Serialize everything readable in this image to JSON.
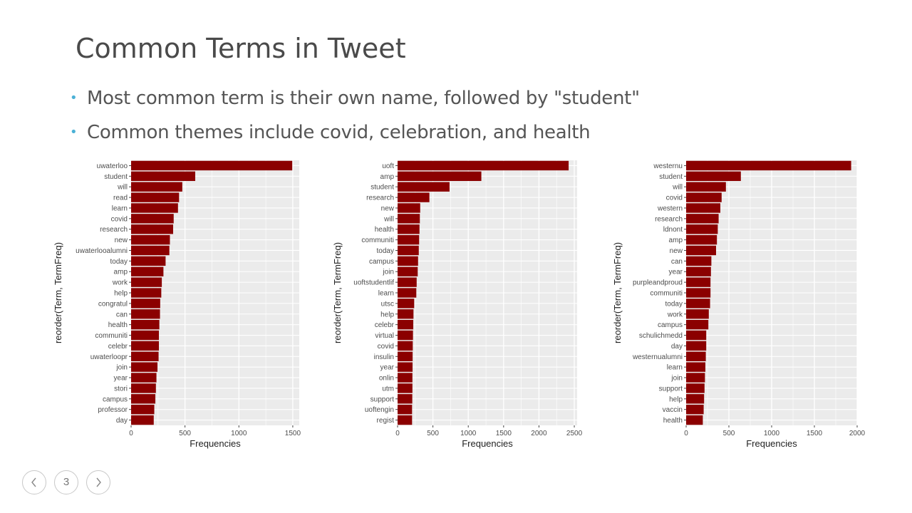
{
  "slide": {
    "title": "Common Terms in Tweet",
    "bullets": [
      "Most common term is their own name, followed by \"student\"",
      "Common themes include covid, celebration, and health"
    ],
    "page_number": "3",
    "prev_icon": "chevron-left-icon",
    "next_icon": "chevron-right-icon"
  },
  "colors": {
    "bar": "#8b0000",
    "panel": "#ebebeb",
    "grid": "#ffffff",
    "bullet": "#4bb1d6"
  },
  "chart_data": [
    {
      "type": "bar",
      "orientation": "horizontal",
      "xlabel": "Frequencies",
      "ylabel": "reorder(Term, TermFreq)",
      "xlim": [
        0,
        1560
      ],
      "xticks": [
        0,
        500,
        1000,
        1500
      ],
      "categories": [
        "uwaterloo",
        "student",
        "will",
        "read",
        "learn",
        "covid",
        "research",
        "new",
        "uwaterlooalumni",
        "today",
        "amp",
        "work",
        "help",
        "congratul",
        "can",
        "health",
        "communiti",
        "celebr",
        "uwaterloopr",
        "join",
        "year",
        "stori",
        "campus",
        "professor",
        "day"
      ],
      "values": [
        1495,
        595,
        475,
        445,
        435,
        395,
        390,
        360,
        355,
        320,
        300,
        285,
        280,
        270,
        268,
        262,
        258,
        258,
        255,
        245,
        235,
        230,
        225,
        215,
        210
      ]
    },
    {
      "type": "bar",
      "orientation": "horizontal",
      "xlabel": "Frequencies",
      "ylabel": "reorder(Term, TermFreq)",
      "xlim": [
        0,
        2540
      ],
      "xticks": [
        0,
        500,
        1000,
        1500,
        2000,
        2500
      ],
      "categories": [
        "uoft",
        "amp",
        "student",
        "research",
        "new",
        "will",
        "health",
        "communiti",
        "today",
        "campus",
        "join",
        "uoftstudentlif",
        "learn",
        "utsc",
        "help",
        "celebr",
        "virtual",
        "covid",
        "insulin",
        "year",
        "onlin",
        "utm",
        "support",
        "uoftengin",
        "regist"
      ],
      "values": [
        2420,
        1185,
        735,
        450,
        320,
        315,
        310,
        305,
        300,
        290,
        285,
        270,
        265,
        235,
        225,
        222,
        218,
        215,
        213,
        212,
        210,
        210,
        208,
        205,
        205
      ]
    },
    {
      "type": "bar",
      "orientation": "horizontal",
      "xlabel": "Frequencies",
      "ylabel": "reorder(Term, TermFreq)",
      "xlim": [
        0,
        2000
      ],
      "xticks": [
        0,
        500,
        1000,
        1500,
        2000
      ],
      "categories": [
        "westernu",
        "student",
        "will",
        "covid",
        "western",
        "research",
        "ldnont",
        "amp",
        "new",
        "can",
        "year",
        "purpleandproud",
        "communiti",
        "today",
        "work",
        "campus",
        "schulichmedd",
        "day",
        "westernualumni",
        "learn",
        "join",
        "support",
        "help",
        "vaccin",
        "health"
      ],
      "values": [
        1930,
        640,
        465,
        415,
        400,
        380,
        370,
        360,
        350,
        295,
        290,
        285,
        285,
        280,
        265,
        260,
        235,
        235,
        230,
        225,
        220,
        215,
        210,
        205,
        195
      ]
    }
  ]
}
